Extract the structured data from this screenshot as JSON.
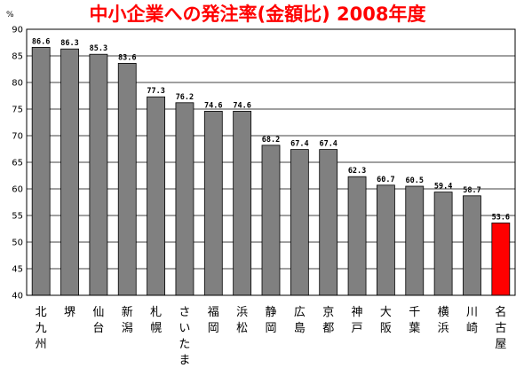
{
  "chart_data": {
    "type": "bar",
    "title": "中小企業への発注率(金額比)  2008年度",
    "unit": "%",
    "xlabel": "",
    "ylabel": "",
    "ylim": [
      40,
      90
    ],
    "yticks": [
      40,
      45,
      50,
      55,
      60,
      65,
      70,
      75,
      80,
      85,
      90
    ],
    "grid": true,
    "legend": "none",
    "categories": [
      "北九州",
      "堺",
      "仙台",
      "新潟",
      "札幌",
      "さいたま",
      "福岡",
      "浜松",
      "静岡",
      "広島",
      "京都",
      "神戸",
      "大阪",
      "千葉",
      "横浜",
      "川崎",
      "名古屋"
    ],
    "values": [
      86.6,
      86.3,
      85.3,
      83.6,
      77.3,
      76.2,
      74.6,
      74.6,
      68.2,
      67.4,
      67.4,
      62.3,
      60.7,
      60.5,
      59.4,
      58.7,
      53.6
    ],
    "value_labels": [
      "86.6",
      "86.3",
      "85.3",
      "83.6",
      "77.3",
      "76.2",
      "74.6",
      "74.6",
      "68.2",
      "67.4",
      "67.4",
      "62.3",
      "60.7",
      "60.5",
      "59.4",
      "58.7",
      "53.6"
    ],
    "bar_color": "#808080",
    "highlight_color": "#ff0000",
    "highlight_index": 16
  }
}
